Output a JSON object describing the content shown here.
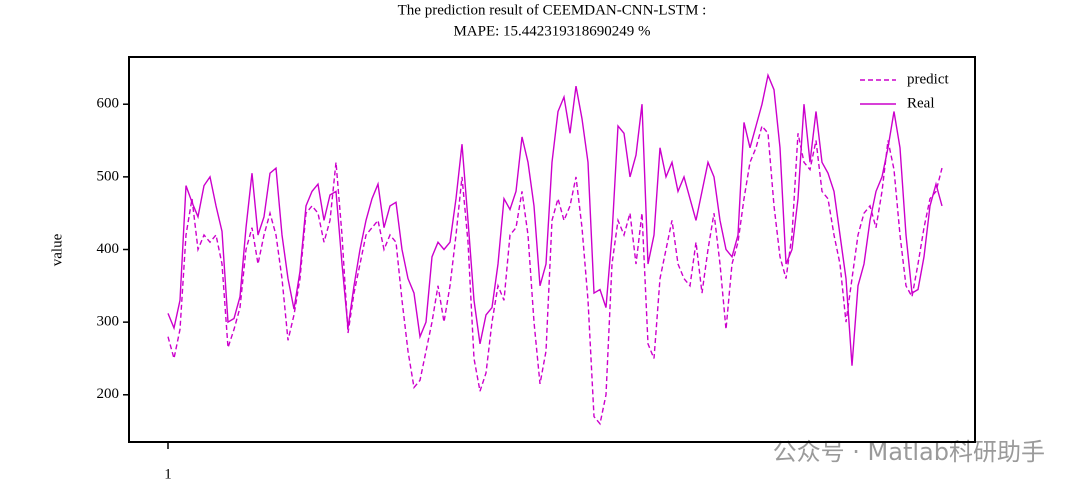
{
  "chart_data": {
    "type": "line",
    "title": [
      "The prediction result of CEEMDAN-CNN-LSTM :",
      "MAPE: 15.442319318690249 %"
    ],
    "ylabel": "value",
    "watermark": "公众号 · Matlab科研助手",
    "legend": "upper right",
    "xlim": [
      -5.5,
      135.5
    ],
    "xticks": [
      1
    ],
    "ylim": [
      135,
      665
    ],
    "yticks": [
      200,
      300,
      400,
      500,
      600
    ],
    "x": [
      1,
      2,
      3,
      4,
      5,
      6,
      7,
      8,
      9,
      10,
      11,
      12,
      13,
      14,
      15,
      16,
      17,
      18,
      19,
      20,
      21,
      22,
      23,
      24,
      25,
      26,
      27,
      28,
      29,
      30,
      31,
      32,
      33,
      34,
      35,
      36,
      37,
      38,
      39,
      40,
      41,
      42,
      43,
      44,
      45,
      46,
      47,
      48,
      49,
      50,
      51,
      52,
      53,
      54,
      55,
      56,
      57,
      58,
      59,
      60,
      61,
      62,
      63,
      64,
      65,
      66,
      67,
      68,
      69,
      70,
      71,
      72,
      73,
      74,
      75,
      76,
      77,
      78,
      79,
      80,
      81,
      82,
      83,
      84,
      85,
      86,
      87,
      88,
      89,
      90,
      91,
      92,
      93,
      94,
      95,
      96,
      97,
      98,
      99,
      100,
      101,
      102,
      103,
      104,
      105,
      106,
      107,
      108,
      109,
      110,
      111,
      112,
      113,
      114,
      115,
      116,
      117,
      118,
      119,
      120,
      121,
      122,
      123,
      124,
      125,
      126,
      127,
      128,
      129,
      130
    ],
    "series": [
      {
        "name": "predict",
        "color": "#cc00cc",
        "linestyle": "dashed",
        "values": [
          280,
          250,
          290,
          420,
          470,
          400,
          420,
          410,
          420,
          380,
          265,
          290,
          320,
          400,
          430,
          380,
          420,
          450,
          420,
          360,
          275,
          310,
          360,
          450,
          460,
          450,
          410,
          440,
          520,
          420,
          285,
          340,
          380,
          420,
          430,
          440,
          400,
          420,
          410,
          330,
          260,
          210,
          220,
          260,
          300,
          350,
          300,
          350,
          420,
          500,
          410,
          250,
          205,
          230,
          300,
          350,
          330,
          420,
          430,
          480,
          420,
          300,
          215,
          260,
          440,
          470,
          440,
          460,
          500,
          430,
          330,
          170,
          160,
          200,
          380,
          440,
          420,
          450,
          380,
          450,
          270,
          250,
          360,
          400,
          440,
          380,
          360,
          350,
          410,
          340,
          400,
          450,
          380,
          290,
          380,
          410,
          470,
          520,
          540,
          570,
          560,
          460,
          390,
          360,
          420,
          560,
          520,
          510,
          550,
          480,
          470,
          420,
          380,
          300,
          360,
          420,
          450,
          460,
          430,
          480,
          550,
          510,
          420,
          350,
          335,
          380,
          430,
          470,
          480,
          512
        ]
      },
      {
        "name": "Real",
        "color": "#cc00cc",
        "linestyle": "solid",
        "values": [
          312,
          292,
          330,
          488,
          465,
          445,
          488,
          500,
          460,
          425,
          300,
          305,
          335,
          430,
          505,
          420,
          445,
          505,
          512,
          420,
          360,
          318,
          370,
          460,
          480,
          490,
          440,
          475,
          480,
          380,
          292,
          350,
          400,
          440,
          470,
          490,
          430,
          460,
          465,
          400,
          360,
          340,
          280,
          300,
          390,
          410,
          400,
          410,
          470,
          545,
          440,
          330,
          270,
          310,
          320,
          380,
          470,
          455,
          480,
          555,
          520,
          460,
          350,
          380,
          520,
          590,
          610,
          560,
          625,
          580,
          520,
          340,
          345,
          320,
          420,
          570,
          560,
          500,
          530,
          600,
          380,
          420,
          540,
          500,
          520,
          480,
          500,
          470,
          440,
          480,
          520,
          500,
          440,
          400,
          390,
          420,
          575,
          540,
          570,
          600,
          640,
          620,
          540,
          380,
          400,
          470,
          600,
          520,
          590,
          520,
          505,
          480,
          420,
          360,
          240,
          350,
          380,
          440,
          480,
          500,
          540,
          590,
          540,
          420,
          340,
          345,
          390,
          460,
          490,
          460
        ]
      }
    ]
  }
}
